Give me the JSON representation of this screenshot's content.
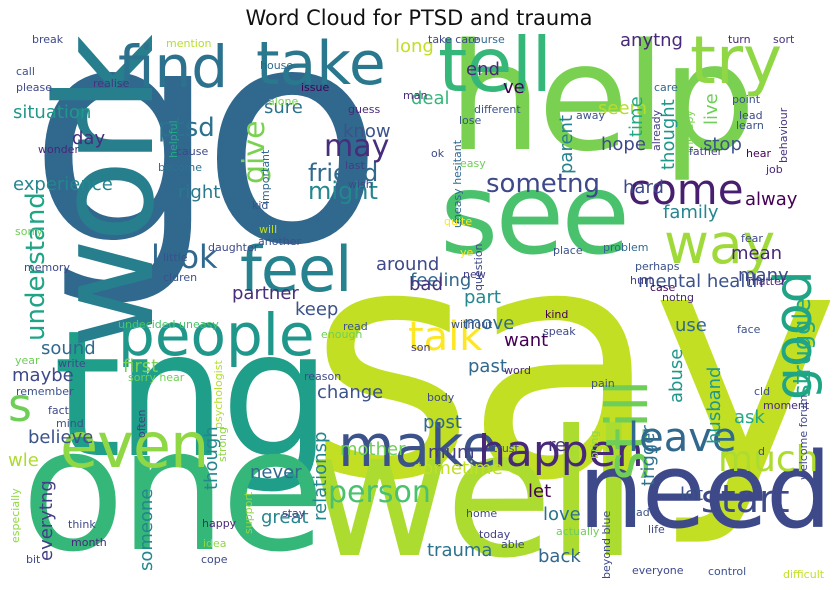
{
  "title": "Word Cloud for PTSD and trauma",
  "words": [
    {
      "text": "go",
      "color": "#31688e"
    },
    {
      "text": "say",
      "color": "#c2df23"
    },
    {
      "text": "help",
      "color": "#7ad151"
    },
    {
      "text": "tng",
      "color": "#1f9e89"
    },
    {
      "text": "one",
      "color": "#35b779"
    },
    {
      "text": "work",
      "color": "#277f8e"
    },
    {
      "text": "well",
      "color": "#addc30"
    },
    {
      "text": "see",
      "color": "#4ac16d"
    },
    {
      "text": "need",
      "color": "#3e4989"
    },
    {
      "text": "tell",
      "color": "#35b779"
    },
    {
      "text": "try",
      "color": "#8fd744"
    },
    {
      "text": "take",
      "color": "#2a788e"
    },
    {
      "text": "find",
      "color": "#2c728e"
    },
    {
      "text": "feel",
      "color": "#26828e"
    },
    {
      "text": "people",
      "color": "#1f988b"
    },
    {
      "text": "way",
      "color": "#9fda3a"
    },
    {
      "text": "even",
      "color": "#8fd744"
    },
    {
      "text": "make",
      "color": "#3b528b"
    },
    {
      "text": "happen",
      "color": "#482878"
    },
    {
      "text": "still",
      "color": "#6ece58"
    },
    {
      "text": "good",
      "color": "#20a486"
    },
    {
      "text": "come",
      "color": "#481f70"
    },
    {
      "text": "talk",
      "color": "#fde725"
    },
    {
      "text": "leave",
      "color": "#31688e"
    },
    {
      "text": "much",
      "color": "#addc30"
    },
    {
      "text": "start",
      "color": "#3e4989"
    },
    {
      "text": "s",
      "color": "#6ece58"
    },
    {
      "text": "look",
      "color": "#31688e"
    },
    {
      "text": "give",
      "color": "#7ad151"
    },
    {
      "text": "may",
      "color": "#472d7b"
    },
    {
      "text": "person",
      "color": "#4ac16d"
    },
    {
      "text": "sometng",
      "color": "#3e4989"
    },
    {
      "text": "understand",
      "color": "#20a486"
    },
    {
      "text": "struggle",
      "color": "#22a884"
    },
    {
      "text": "ptsd",
      "color": "#2c728e"
    },
    {
      "text": "friend",
      "color": "#31688e"
    },
    {
      "text": "might",
      "color": "#24868e"
    },
    {
      "text": "know",
      "color": "#3b528b"
    },
    {
      "text": "experience",
      "color": "#24868e"
    },
    {
      "text": "situation",
      "color": "#1f988b"
    },
    {
      "text": "day",
      "color": "#472d7b"
    },
    {
      "text": "right",
      "color": "#2a788e"
    },
    {
      "text": "sure",
      "color": "#2c728e"
    },
    {
      "text": "deal",
      "color": "#35b779"
    },
    {
      "text": "long",
      "color": "#c2df23"
    },
    {
      "text": "end",
      "color": "#482878"
    },
    {
      "text": "ve",
      "color": "#440154"
    },
    {
      "text": "seem",
      "color": "#b5de2b"
    },
    {
      "text": "anytng",
      "color": "#482878"
    },
    {
      "text": "time",
      "color": "#22a884"
    },
    {
      "text": "live",
      "color": "#6ece58"
    },
    {
      "text": "thought",
      "color": "#1f988b"
    },
    {
      "text": "hope",
      "color": "#3e4989"
    },
    {
      "text": "parent",
      "color": "#26828e"
    },
    {
      "text": "stop",
      "color": "#3b528b"
    },
    {
      "text": "hard",
      "color": "#3e4989"
    },
    {
      "text": "alway",
      "color": "#440154"
    },
    {
      "text": "family",
      "color": "#24868e"
    },
    {
      "text": "feeling",
      "color": "#31688e"
    },
    {
      "text": "around",
      "color": "#3e4989"
    },
    {
      "text": "partner",
      "color": "#472d7b"
    },
    {
      "text": "bad",
      "color": "#46337e"
    },
    {
      "text": "part",
      "color": "#24868e"
    },
    {
      "text": "mental health",
      "color": "#3b528b"
    },
    {
      "text": "mean",
      "color": "#482878"
    },
    {
      "text": "many",
      "color": "#3e4989"
    },
    {
      "text": "use",
      "color": "#31688e"
    },
    {
      "text": "abuse",
      "color": "#1f988b"
    },
    {
      "text": "husband",
      "color": "#1f988b"
    },
    {
      "text": "keep",
      "color": "#3b528b"
    },
    {
      "text": "move",
      "color": "#31688e"
    },
    {
      "text": "want",
      "color": "#440154"
    },
    {
      "text": "past",
      "color": "#31688e"
    },
    {
      "text": "put",
      "color": "#c2df23"
    },
    {
      "text": "sound",
      "color": "#31688e"
    },
    {
      "text": "maybe",
      "color": "#3e4989"
    },
    {
      "text": "first",
      "color": "#7ad151"
    },
    {
      "text": "change",
      "color": "#3b528b"
    },
    {
      "text": "post",
      "color": "#31688e"
    },
    {
      "text": "trigger",
      "color": "#2c728e"
    },
    {
      "text": "re",
      "color": "#46337e"
    },
    {
      "text": "ask",
      "color": "#22a884"
    },
    {
      "text": "believe",
      "color": "#3b528b"
    },
    {
      "text": "relationsp",
      "color": "#24868e"
    },
    {
      "text": "though",
      "color": "#24868e"
    },
    {
      "text": "mother",
      "color": "#6ece58"
    },
    {
      "text": "mum",
      "color": "#433e85"
    },
    {
      "text": "wle",
      "color": "#addc30"
    },
    {
      "text": "never",
      "color": "#31688e"
    },
    {
      "text": "sometime",
      "color": "#c2df23"
    },
    {
      "text": "let",
      "color": "#440154"
    },
    {
      "text": "lot",
      "color": "#3b528b"
    },
    {
      "text": "love",
      "color": "#2c728e"
    },
    {
      "text": "everytng",
      "color": "#433e85"
    },
    {
      "text": "someone",
      "color": "#24868e"
    },
    {
      "text": "great",
      "color": "#24868e"
    },
    {
      "text": "trauma",
      "color": "#2c728e"
    },
    {
      "text": "back",
      "color": "#31688e"
    },
    {
      "text": "mention",
      "color": "#b5de2b"
    },
    {
      "text": "break",
      "color": "#3e4989"
    },
    {
      "text": "take care",
      "color": "#3e4989"
    },
    {
      "text": "course",
      "color": "#31688e"
    },
    {
      "text": "turn",
      "color": "#482878"
    },
    {
      "text": "sort",
      "color": "#46337e"
    },
    {
      "text": "call",
      "color": "#3b528b"
    },
    {
      "text": "please",
      "color": "#3e4989"
    },
    {
      "text": "realise",
      "color": "#46337e"
    },
    {
      "text": "house",
      "color": "#31688e"
    },
    {
      "text": "alone",
      "color": "#7ad151"
    },
    {
      "text": "issue",
      "color": "#440154"
    },
    {
      "text": "man",
      "color": "#482878"
    },
    {
      "text": "different",
      "color": "#3b528b"
    },
    {
      "text": "care",
      "color": "#31688e"
    },
    {
      "text": "point",
      "color": "#3b528b"
    },
    {
      "text": "lead",
      "color": "#3e4989"
    },
    {
      "text": "helpful",
      "color": "#22a884"
    },
    {
      "text": "wonder",
      "color": "#482878"
    },
    {
      "text": "become",
      "color": "#2c728e"
    },
    {
      "text": "cause",
      "color": "#3e4989"
    },
    {
      "text": "guess",
      "color": "#482878"
    },
    {
      "text": "last",
      "color": "#433e85"
    },
    {
      "text": "important",
      "color": "#31688e"
    },
    {
      "text": "uneasy hesitant",
      "color": "#31688e"
    },
    {
      "text": "lose",
      "color": "#3b528b"
    },
    {
      "text": "away",
      "color": "#3b528b"
    },
    {
      "text": "already",
      "color": "#433e85"
    },
    {
      "text": "therapy",
      "color": "#7ad151"
    },
    {
      "text": "learn",
      "color": "#3b528b"
    },
    {
      "text": "behaviour",
      "color": "#46337e"
    },
    {
      "text": "ok",
      "color": "#3e4989"
    },
    {
      "text": "easy",
      "color": "#6ece58"
    },
    {
      "text": "father",
      "color": "#433e85"
    },
    {
      "text": "wish",
      "color": "#3e4989"
    },
    {
      "text": "kid",
      "color": "#3b528b"
    },
    {
      "text": "will",
      "color": "#c2df23"
    },
    {
      "text": "quite",
      "color": "#fde725"
    },
    {
      "text": "hear",
      "color": "#440154"
    },
    {
      "text": "job",
      "color": "#482878"
    },
    {
      "text": "sorry",
      "color": "#6ece58"
    },
    {
      "text": "another",
      "color": "#3b528b"
    },
    {
      "text": "daughter",
      "color": "#3e4989"
    },
    {
      "text": "ye",
      "color": "#fde725"
    },
    {
      "text": "question",
      "color": "#3e4989"
    },
    {
      "text": "place",
      "color": "#3b528b"
    },
    {
      "text": "problem",
      "color": "#31688e"
    },
    {
      "text": "fear",
      "color": "#3e4989"
    },
    {
      "text": "memory",
      "color": "#3e4989"
    },
    {
      "text": "little",
      "color": "#3b528b"
    },
    {
      "text": "cldren",
      "color": "#3b528b"
    },
    {
      "text": "perhaps",
      "color": "#3b528b"
    },
    {
      "text": "new",
      "color": "#433e85"
    },
    {
      "text": "hurt",
      "color": "#433e85"
    },
    {
      "text": "case",
      "color": "#440154"
    },
    {
      "text": "matter",
      "color": "#482878"
    },
    {
      "text": "notng",
      "color": "#482878"
    },
    {
      "text": "undecided uneasy",
      "color": "#4ac16d"
    },
    {
      "text": "without",
      "color": "#3b528b"
    },
    {
      "text": "son",
      "color": "#433e85"
    },
    {
      "text": "kind",
      "color": "#440154"
    },
    {
      "text": "speak",
      "color": "#3e4989"
    },
    {
      "text": "face",
      "color": "#3b528b"
    },
    {
      "text": "enough",
      "color": "#6ece58"
    },
    {
      "text": "read",
      "color": "#3b528b"
    },
    {
      "text": "year",
      "color": "#6ece58"
    },
    {
      "text": "write",
      "color": "#3e4989"
    },
    {
      "text": "sorry hear",
      "color": "#6ece58"
    },
    {
      "text": "reason",
      "color": "#3e4989"
    },
    {
      "text": "word",
      "color": "#482878"
    },
    {
      "text": "body",
      "color": "#3e4989"
    },
    {
      "text": "pain",
      "color": "#3b528b"
    },
    {
      "text": "remember",
      "color": "#3b528b"
    },
    {
      "text": "psychologist",
      "color": "#b5de2b"
    },
    {
      "text": "cld",
      "color": "#3b528b"
    },
    {
      "text": "moment",
      "color": "#482878"
    },
    {
      "text": "fact",
      "color": "#3e4989"
    },
    {
      "text": "mind",
      "color": "#3b528b"
    },
    {
      "text": "often",
      "color": "#433e85"
    },
    {
      "text": "strong",
      "color": "#8fd744"
    },
    {
      "text": "trust",
      "color": "#3b528b"
    },
    {
      "text": "bring",
      "color": "#8fd744"
    },
    {
      "text": "welcome forum",
      "color": "#3e4989"
    },
    {
      "text": "d",
      "color": "#3e4989"
    },
    {
      "text": "especially",
      "color": "#8fd744"
    },
    {
      "text": "think",
      "color": "#3e4989"
    },
    {
      "text": "month",
      "color": "#482878"
    },
    {
      "text": "happy",
      "color": "#482878"
    },
    {
      "text": "idea",
      "color": "#8fd744"
    },
    {
      "text": "cope",
      "color": "#3e4989"
    },
    {
      "text": "bit",
      "color": "#3e4989"
    },
    {
      "text": "support",
      "color": "#8fd744"
    },
    {
      "text": "stay",
      "color": "#433e85"
    },
    {
      "text": "home",
      "color": "#3e4989"
    },
    {
      "text": "today",
      "color": "#433e85"
    },
    {
      "text": "able",
      "color": "#3e4989"
    },
    {
      "text": "actually",
      "color": "#6ece58"
    },
    {
      "text": "beyond blue",
      "color": "#3e4989"
    },
    {
      "text": "dad",
      "color": "#3b528b"
    },
    {
      "text": "life",
      "color": "#3e4989"
    },
    {
      "text": "everyone",
      "color": "#3e4989"
    },
    {
      "text": "control",
      "color": "#3b528b"
    },
    {
      "text": "difficult",
      "color": "#c2df23"
    }
  ]
}
